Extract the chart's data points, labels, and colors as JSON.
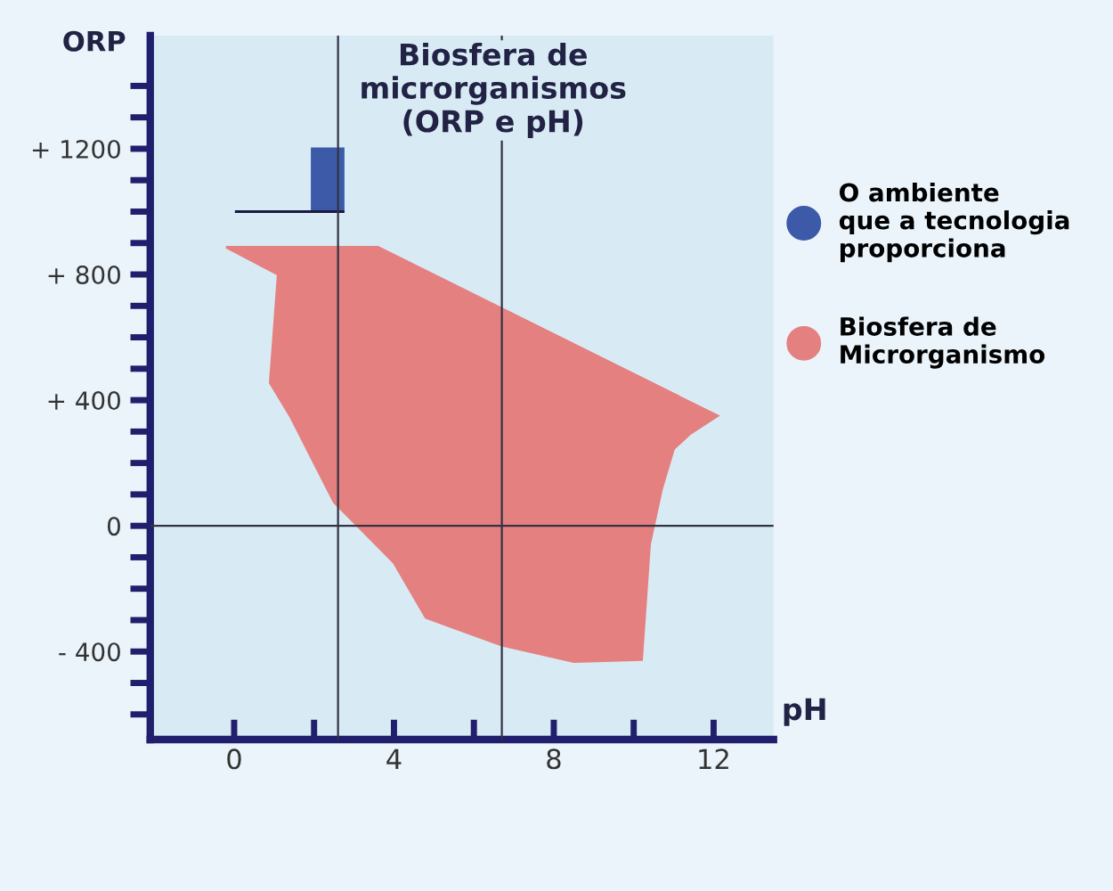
{
  "chart_data": {
    "type": "area",
    "title": "Biosfera de\nmicrorganismos\n(ORP e pH)",
    "xlabel": "pH",
    "ylabel": "ORP",
    "series": [
      {
        "name": "O ambiente\nque a tecnologia\nproporciona",
        "type": "area",
        "color": "#3d5aa8",
        "x": [
          1.95,
          2.73,
          2.73,
          1.95
        ],
        "values": [
          1005,
          1005,
          1200,
          1200
        ]
      },
      {
        "name": "Biosfera de\nMicrorganismo",
        "color": "#e58080",
        "x": [
          -0.2,
          1.1,
          0.9,
          1.4,
          2.5,
          4.0,
          4.8,
          6.7,
          8.5,
          10.2,
          10.4,
          10.7,
          11.0,
          11.4,
          12.1,
          3.6
        ],
        "values": [
          887,
          800,
          455,
          350,
          76,
          -117,
          -292,
          -380,
          -432,
          -426,
          -58,
          117,
          245,
          292,
          350,
          887
        ]
      },
      {
        "type": "line",
        "color": "#1a1a40",
        "x": [
          0.05,
          2.73
        ],
        "values": [
          1000,
          1000
        ]
      }
    ],
    "ref_lines": [
      {
        "axis": "x",
        "value": 2.6,
        "color": "#333344"
      },
      {
        "axis": "x",
        "value": 6.7,
        "color": "#333344"
      },
      {
        "axis": "y",
        "value": 0,
        "color": "#333344"
      }
    ],
    "xlim": [
      -2.1,
      13.5
    ],
    "ylim": [
      -680,
      1560
    ],
    "xticks": [
      {
        "value": 0,
        "label": "0"
      },
      {
        "value": 2,
        "label": null
      },
      {
        "value": 4,
        "label": "4"
      },
      {
        "value": 6,
        "label": null
      },
      {
        "value": 8,
        "label": "8"
      },
      {
        "value": 10,
        "label": null
      },
      {
        "value": 12,
        "label": "12"
      }
    ],
    "yticks": [
      {
        "value": -600,
        "label": null
      },
      {
        "value": -500,
        "label": null
      },
      {
        "value": -400,
        "label": "- 400"
      },
      {
        "value": -300,
        "label": null
      },
      {
        "value": -200,
        "label": null
      },
      {
        "value": -100,
        "label": null
      },
      {
        "value": 0,
        "label": "0"
      },
      {
        "value": 100,
        "label": null
      },
      {
        "value": 200,
        "label": null
      },
      {
        "value": 300,
        "label": null
      },
      {
        "value": 400,
        "label": "+ 400"
      },
      {
        "value": 500,
        "label": null
      },
      {
        "value": 600,
        "label": null
      },
      {
        "value": 700,
        "label": null
      },
      {
        "value": 800,
        "label": "+ 800"
      },
      {
        "value": 900,
        "label": null
      },
      {
        "value": 1000,
        "label": null
      },
      {
        "value": 1100,
        "label": null
      },
      {
        "value": 1200,
        "label": "+ 1200"
      },
      {
        "value": 1300,
        "label": null
      },
      {
        "value": 1400,
        "label": null
      }
    ],
    "grid": false,
    "legend": "right"
  }
}
